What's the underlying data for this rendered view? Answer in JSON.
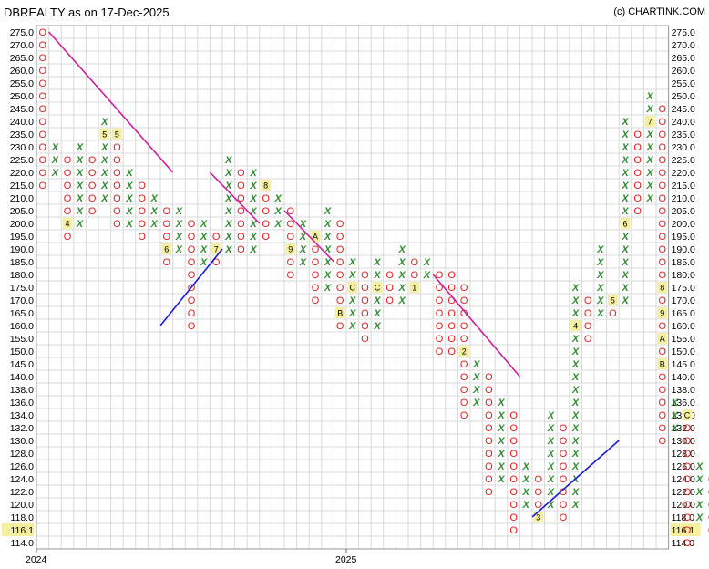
{
  "header": {
    "title": "DBREALTY as on 17-Dec-2025",
    "copyright": "(c) CHARTINK.COM"
  },
  "colors": {
    "x_mark": "#2e8b2e",
    "o_mark": "#e21d1d",
    "resistance_line": "#cc1f9f",
    "support_line": "#1a1ad6",
    "grid": "#d8d8d8",
    "month_box": "#f5f0a0",
    "last_price_box": "#f5f0a0"
  },
  "chart_data": {
    "type": "point-and-figure",
    "y_ticks": [
      275.0,
      270.0,
      265.0,
      260.0,
      255.0,
      250.0,
      245.0,
      240.0,
      235.0,
      230.0,
      225.0,
      220.0,
      215.0,
      210.0,
      205.0,
      200.0,
      195.0,
      190.0,
      185.0,
      180.0,
      175.0,
      170.0,
      165.0,
      160.0,
      155.0,
      150.0,
      145.0,
      140.0,
      138.0,
      136.0,
      134.0,
      132.0,
      130.0,
      128.0,
      126.0,
      124.0,
      122.0,
      120.0,
      118.0,
      116.0,
      114.0
    ],
    "y_tick_labels": [
      "275.0",
      "270.0",
      "265.0",
      "260.0",
      "255.0",
      "250.0",
      "245.0",
      "240.0",
      "235.0",
      "230.0",
      "225.0",
      "220.0",
      "215.0",
      "210.0",
      "205.0",
      "200.0",
      "195.0",
      "190.0",
      "185.0",
      "180.0",
      "175.0",
      "170.0",
      "165.0",
      "160.0",
      "155.0",
      "150.0",
      "145.0",
      "140.0",
      "138.0",
      "136.0",
      "134.0",
      "132.0",
      "130.0",
      "128.0",
      "126.0",
      "124.0",
      "122.0",
      "120.0",
      "118.0",
      "116.1",
      "114.0"
    ],
    "last_price": "116.1",
    "x_labels": [
      {
        "col": 0,
        "label": "2024"
      },
      {
        "col": 25,
        "label": "2025"
      }
    ],
    "columns": [
      {
        "type": "O",
        "top": 275.0,
        "bottom": 215.0
      },
      {
        "type": "X",
        "top": 230.0,
        "bottom": 220.0
      },
      {
        "type": "O",
        "top": 225.0,
        "bottom": 195.0,
        "months": {
          "200.0": "4"
        }
      },
      {
        "type": "X",
        "top": 230.0,
        "bottom": 200.0
      },
      {
        "type": "O",
        "top": 225.0,
        "bottom": 205.0
      },
      {
        "type": "X",
        "top": 240.0,
        "bottom": 210.0,
        "months": {
          "235.0": "5"
        }
      },
      {
        "type": "O",
        "top": 235.0,
        "bottom": 200.0,
        "months": {
          "235.0": "5"
        }
      },
      {
        "type": "X",
        "top": 220.0,
        "bottom": 200.0
      },
      {
        "type": "O",
        "top": 215.0,
        "bottom": 195.0
      },
      {
        "type": "X",
        "top": 210.0,
        "bottom": 200.0
      },
      {
        "type": "O",
        "top": 205.0,
        "bottom": 185.0,
        "months": {
          "190.0": "6"
        }
      },
      {
        "type": "X",
        "top": 205.0,
        "bottom": 190.0
      },
      {
        "type": "O",
        "top": 200.0,
        "bottom": 160.0
      },
      {
        "type": "X",
        "top": 200.0,
        "bottom": 185.0
      },
      {
        "type": "O",
        "top": 195.0,
        "bottom": 185.0,
        "months": {
          "190.0": "7"
        }
      },
      {
        "type": "X",
        "top": 225.0,
        "bottom": 190.0
      },
      {
        "type": "O",
        "top": 220.0,
        "bottom": 190.0
      },
      {
        "type": "X",
        "top": 220.0,
        "bottom": 190.0
      },
      {
        "type": "O",
        "top": 215.0,
        "bottom": 195.0,
        "months": {
          "215.0": "8"
        }
      },
      {
        "type": "X",
        "top": 210.0,
        "bottom": 200.0
      },
      {
        "type": "O",
        "top": 205.0,
        "bottom": 180.0,
        "months": {
          "190.0": "9"
        }
      },
      {
        "type": "X",
        "top": 200.0,
        "bottom": 185.0
      },
      {
        "type": "O",
        "top": 195.0,
        "bottom": 170.0,
        "months": {
          "195.0": "A"
        }
      },
      {
        "type": "X",
        "top": 205.0,
        "bottom": 175.0
      },
      {
        "type": "O",
        "top": 200.0,
        "bottom": 160.0,
        "months": {
          "165.0": "B"
        }
      },
      {
        "type": "X",
        "top": 185.0,
        "bottom": 160.0,
        "months": {
          "175.0": "C"
        }
      },
      {
        "type": "O",
        "top": 180.0,
        "bottom": 155.0
      },
      {
        "type": "X",
        "top": 185.0,
        "bottom": 160.0,
        "months": {
          "175.0": "C"
        }
      },
      {
        "type": "O",
        "top": 180.0,
        "bottom": 170.0
      },
      {
        "type": "X",
        "top": 190.0,
        "bottom": 170.0
      },
      {
        "type": "O",
        "top": 185.0,
        "bottom": 175.0,
        "months": {
          "175.0": "1"
        }
      },
      {
        "type": "X",
        "top": 185.0,
        "bottom": 180.0
      },
      {
        "type": "O",
        "top": 180.0,
        "bottom": 150.0
      },
      {
        "type": "O",
        "top": 180.0,
        "bottom": 150.0
      },
      {
        "type": "O",
        "top": 175.0,
        "bottom": 134.0,
        "months": {
          "150.0": "2"
        }
      },
      {
        "type": "X",
        "top": 145.0,
        "bottom": 136.0
      },
      {
        "type": "O",
        "top": 140.0,
        "bottom": 122.0
      },
      {
        "type": "X",
        "top": 136.0,
        "bottom": 124.0
      },
      {
        "type": "O",
        "top": 134.0,
        "bottom": 116.0
      },
      {
        "type": "X",
        "top": 126.0,
        "bottom": 120.0
      },
      {
        "type": "O",
        "top": 124.0,
        "bottom": 118.0,
        "months": {
          "118.0": "3"
        }
      },
      {
        "type": "X",
        "top": 134.0,
        "bottom": 120.0
      },
      {
        "type": "O",
        "top": 132.0,
        "bottom": 118.0
      },
      {
        "type": "X",
        "top": 175.0,
        "bottom": 120.0,
        "months": {
          "160.0": "4"
        }
      },
      {
        "type": "O",
        "top": 170.0,
        "bottom": 155.0
      },
      {
        "type": "X",
        "top": 190.0,
        "bottom": 165.0
      },
      {
        "type": "O",
        "top": 170.0,
        "bottom": 165.0,
        "months": {
          "170.0": "5"
        }
      },
      {
        "type": "X",
        "top": 240.0,
        "bottom": 170.0,
        "months": {
          "200.0": "6"
        }
      },
      {
        "type": "O",
        "top": 235.0,
        "bottom": 205.0
      },
      {
        "type": "X",
        "top": 250.0,
        "bottom": 210.0,
        "months": {
          "240.0": "7"
        }
      },
      {
        "type": "O",
        "top": 245.0,
        "bottom": 130.0,
        "months": {
          "175.0": "8",
          "165.0": "9",
          "155.0": "A",
          "145.0": "B"
        }
      },
      {
        "type": "X",
        "top": 136.0,
        "bottom": 132.0
      },
      {
        "type": "O",
        "top": 134.0,
        "bottom": 114.0,
        "months": {
          "134.0": "C"
        }
      },
      {
        "type": "X",
        "top": 126.0,
        "bottom": 118.0
      },
      {
        "type": "O",
        "top": 124.0,
        "bottom": 116.0
      },
      {
        "type": "X",
        "top": 122.0,
        "bottom": 118.0
      },
      {
        "type": "O",
        "top": 120.0,
        "bottom": 116.0
      }
    ],
    "trend_lines": [
      {
        "kind": "resistance",
        "from": {
          "col": 1,
          "price": 275.0
        },
        "to": {
          "col": 11,
          "price": 220.0
        }
      },
      {
        "kind": "resistance",
        "from": {
          "col": 14,
          "price": 220.0
        },
        "to": {
          "col": 18,
          "price": 200.0
        }
      },
      {
        "kind": "resistance",
        "from": {
          "col": 20,
          "price": 205.0
        },
        "to": {
          "col": 24,
          "price": 185.0
        }
      },
      {
        "kind": "resistance",
        "from": {
          "col": 32,
          "price": 180.0
        },
        "to": {
          "col": 39,
          "price": 140.0
        }
      },
      {
        "kind": "support",
        "from": {
          "col": 10,
          "price": 160.0
        },
        "to": {
          "col": 15,
          "price": 190.0
        }
      },
      {
        "kind": "support",
        "from": {
          "col": 40,
          "price": 118.0
        },
        "to": {
          "col": 47,
          "price": 130.0
        }
      }
    ]
  }
}
